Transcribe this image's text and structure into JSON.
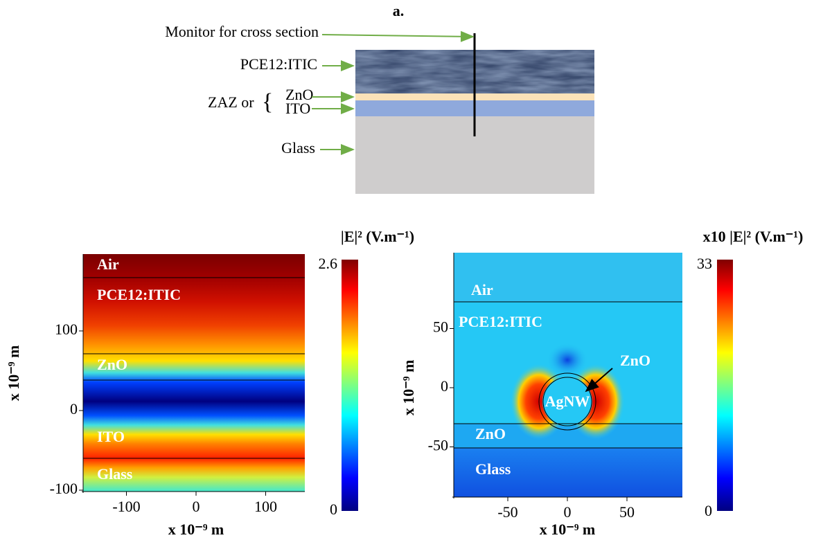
{
  "panel_a": {
    "label": "a.",
    "monitor": "Monitor for cross section",
    "active": "PCE12:ITIC",
    "zaz": "ZAZ or",
    "zno": "ZnO",
    "ito": "ITO",
    "glass": "Glass"
  },
  "map1": {
    "layers": [
      "Air",
      "PCE12:ITIC",
      "ZnO",
      "ITO",
      "Glass"
    ],
    "xticks": [
      -100,
      0,
      100
    ],
    "yticks": [
      -100,
      0,
      100
    ],
    "xlabel": "x 10⁻⁹ m",
    "ylabel": "x 10⁻⁹ m",
    "colorbar_title": "|E|² (V.m⁻¹)",
    "colorbar_max": 2.6,
    "colorbar_min": 0
  },
  "map2": {
    "layers": [
      "Air",
      "PCE12:ITIC",
      "ZnO",
      "Glass"
    ],
    "wire": "AgNW",
    "shell": "ZnO",
    "xticks": [
      -50,
      0,
      50
    ],
    "yticks": [
      -50,
      0,
      50
    ],
    "xlabel": "x 10⁻⁹ m",
    "ylabel": "x 10⁻⁹ m",
    "colorbar_title": "x10 |E|² (V.m⁻¹)",
    "colorbar_max": 33,
    "colorbar_min": 0
  }
}
